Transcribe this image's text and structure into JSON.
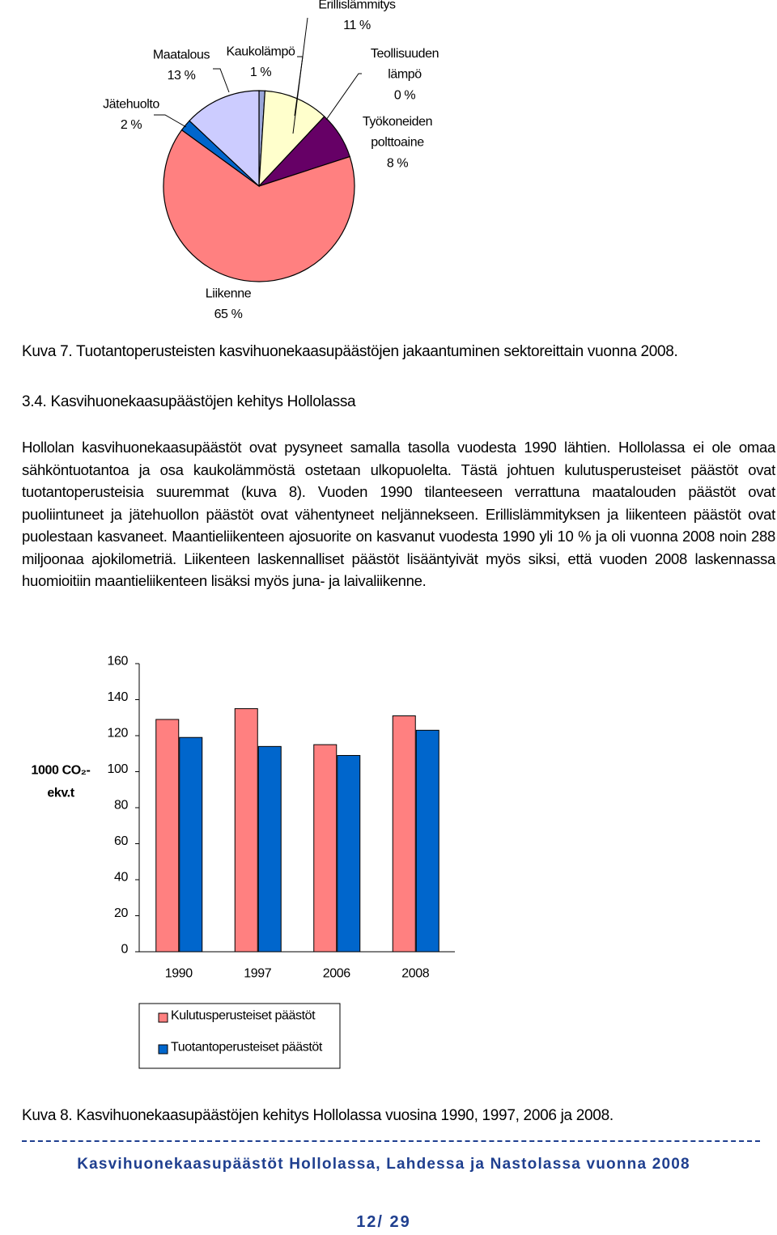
{
  "chart_data": [
    {
      "type": "pie",
      "categories": [
        "Kaukolämpö",
        "Erillislämmitys",
        "Teollisuuden lämpö",
        "Työkoneiden polttoaine",
        "Liikenne",
        "Jätehuolto",
        "Maatalous"
      ],
      "values": [
        1,
        11,
        0,
        8,
        65,
        2,
        13
      ],
      "value_labels": [
        "1 %",
        "11 %",
        "0 %",
        "8 %",
        "65 %",
        "2 %",
        "13 %"
      ],
      "colors": [
        "#9aa6d8",
        "#ffffcc",
        "#333333",
        "#660066",
        "#ff8080",
        "#0066cc",
        "#ccccff"
      ]
    },
    {
      "type": "bar",
      "ylabel": [
        "1000 CO₂-",
        "ekv.t"
      ],
      "categories": [
        "1990",
        "1997",
        "2006",
        "2008"
      ],
      "series": [
        {
          "name": "Kulutusperusteiset päästöt",
          "color": "#ff8080",
          "values": [
            129,
            135,
            115,
            131
          ]
        },
        {
          "name": "Tuotantoperusteiset päästöt",
          "color": "#0066cc",
          "values": [
            119,
            114,
            109,
            123
          ]
        }
      ],
      "ylim": [
        0,
        160
      ],
      "yticks": [
        0,
        20,
        40,
        60,
        80,
        100,
        120,
        140,
        160
      ],
      "grid": false,
      "legend": "bottom"
    }
  ],
  "captions": [
    "Kuva 7. Tuotantoperusteisten kasvihuonekaasupäästöjen jakaantuminen sektoreittain vuonna 2008.",
    "Kuva 8. Kasvihuonekaasupäästöjen kehitys Hollolassa vuosina 1990, 1997, 2006 ja 2008."
  ],
  "section": {
    "heading": "3.4. Kasvihuonekaasupäästöjen kehitys Hollolassa",
    "paragraph": "Hollolan kasvihuonekaasupäästöt ovat pysyneet samalla tasolla vuodesta 1990 lähtien. Hollolassa ei ole omaa sähköntuotantoa ja osa kaukolämmöstä ostetaan ulkopuolelta. Tästä johtuen kulutusperusteiset päästöt ovat tuotantoperusteisia suuremmat (kuva 8). Vuoden 1990 tilanteeseen verrattuna maatalouden päästöt ovat puoliintuneet ja jätehuollon päästöt ovat vähentyneet neljännekseen. Erillislämmityksen ja liikenteen päästöt ovat puolestaan kasvaneet. Maantieliikenteen ajosuorite on kasvanut vuodesta 1990 yli 10 % ja oli vuonna 2008 noin 288 miljoonaa ajokilometriä. Liikenteen laskennalliset päästöt lisääntyivät myös siksi, että vuoden 2008 laskennassa huomioitiin maantieliikenteen lisäksi myös juna- ja laivaliikenne."
  },
  "footer": {
    "title": "Kasvihuonekaasupäästöt Hollolassa, Lahdessa ja Nastolassa vuonna 2008",
    "page": "12/ 29"
  }
}
